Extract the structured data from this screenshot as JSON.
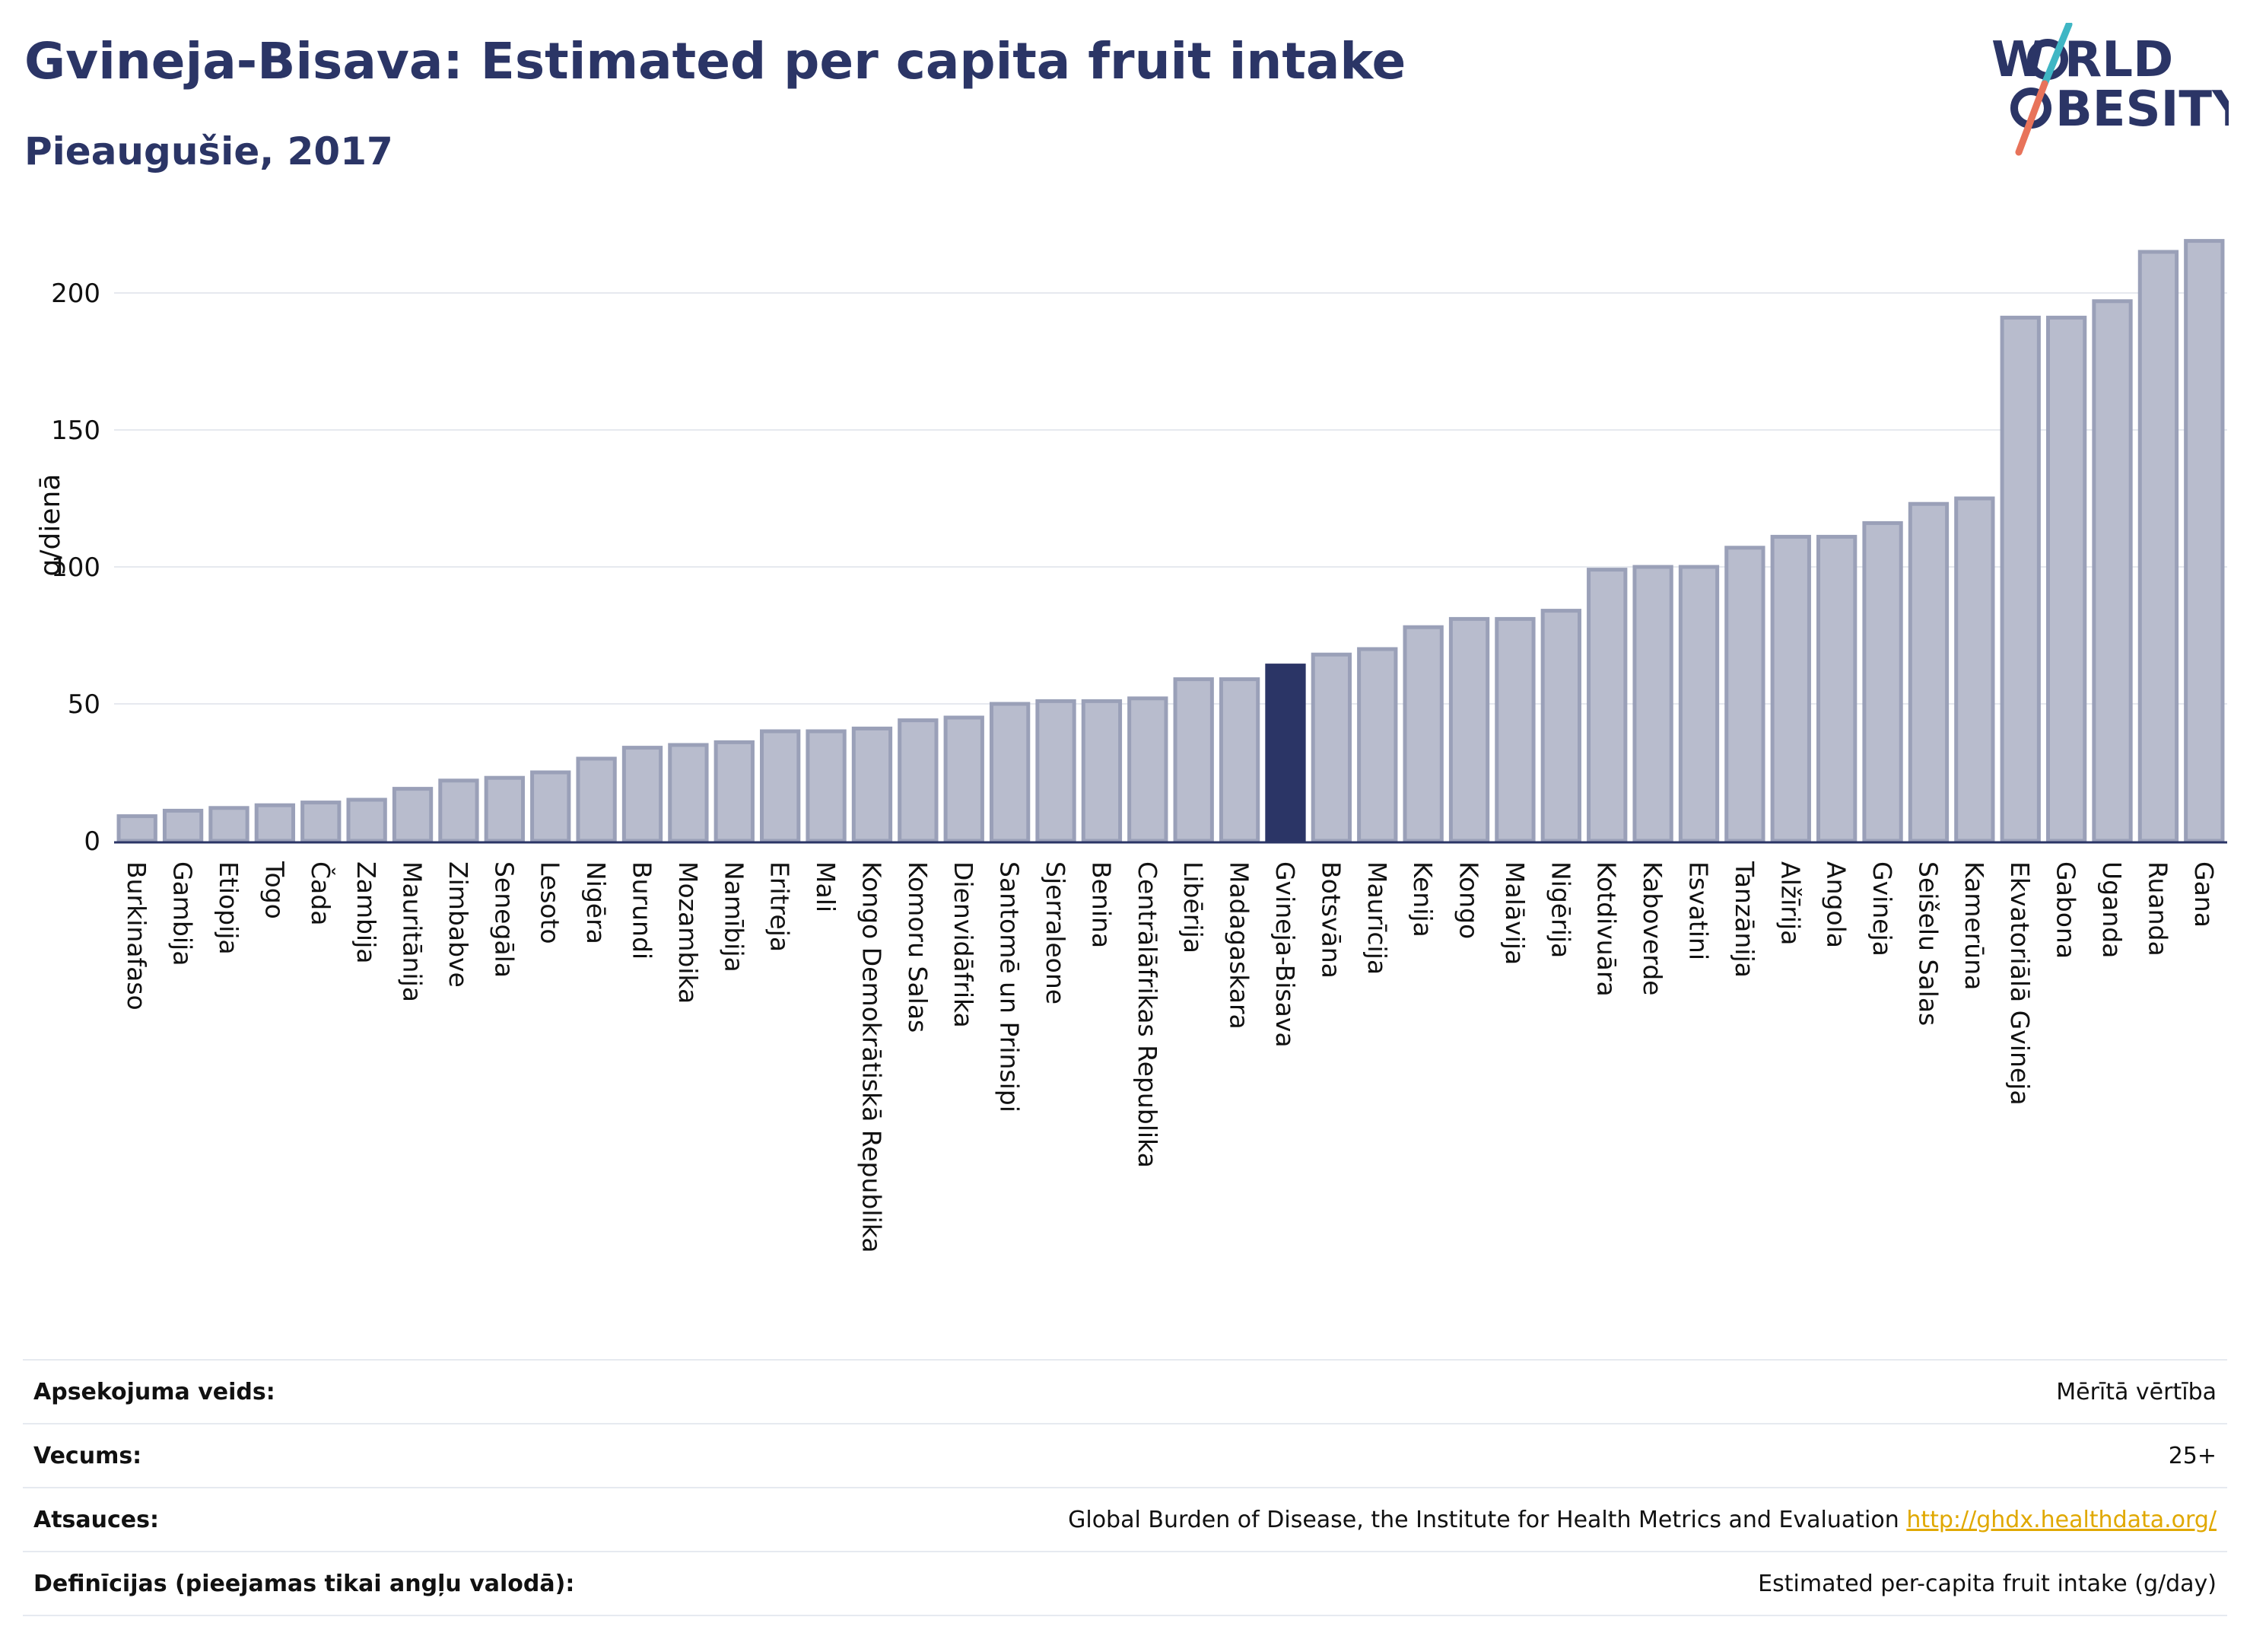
{
  "header": {
    "title": "Gvineja-Bisava: Estimated per capita fruit intake",
    "subtitle": "Pieaugušie, 2017"
  },
  "logo": {
    "line1": "W",
    "line1b": "RLD",
    "line2b": "BESITY",
    "slash_color_top": "#3fb6c4",
    "slash_color_bottom": "#e8735a"
  },
  "colors": {
    "bar": "#b8bccd",
    "bar_stroke": "#9aa0b8",
    "highlight": "#2b3566",
    "grid": "#e6e9ef"
  },
  "chart_data": {
    "type": "bar",
    "ylabel": "g/dienā",
    "ylim": [
      0,
      230
    ],
    "yticks": [
      0,
      50,
      100,
      150,
      200
    ],
    "grid": true,
    "highlight": "Gvineja-Bisava",
    "categories": [
      "Burkinafaso",
      "Gambija",
      "Etiopija",
      "Togo",
      "Čada",
      "Zambija",
      "Mauritānija",
      "Zimbabve",
      "Senegāla",
      "Lesoto",
      "Nigēra",
      "Burundi",
      "Mozambika",
      "Namībija",
      "Eritreja",
      "Mali",
      "Kongo Demokrātiskā Republika",
      "Komoru Salas",
      "Dienvidāfrika",
      "Santomē un Prinsipi",
      "Sjerraleone",
      "Benina",
      "Centrālāfrikas Republika",
      "Libērija",
      "Madagaskara",
      "Gvineja-Bisava",
      "Botsvāna",
      "Maurīcija",
      "Kenija",
      "Kongo",
      "Malāvija",
      "Nigērija",
      "Kotdivuāra",
      "Kaboverde",
      "Esvatini",
      "Tanzānija",
      "Alžīrija",
      "Angola",
      "Gvineja",
      "Seišelu Salas",
      "Kamerūna",
      "Ekvatoriālā Gvineja",
      "Gabona",
      "Uganda",
      "Ruanda",
      "Gana"
    ],
    "values": [
      9,
      11,
      12,
      13,
      14,
      15,
      19,
      22,
      23,
      25,
      30,
      34,
      35,
      36,
      40,
      40,
      41,
      44,
      45,
      50,
      51,
      51,
      52,
      59,
      59,
      64,
      68,
      70,
      78,
      81,
      81,
      84,
      99,
      100,
      100,
      107,
      111,
      111,
      116,
      123,
      125,
      191,
      191,
      197,
      215,
      219
    ]
  },
  "info": [
    {
      "label": "Apsekojuma veids:",
      "value": "Mērītā vērtība"
    },
    {
      "label": "Vecums:",
      "value": "25+"
    },
    {
      "label": "Atsauces:",
      "value": "Global Burden of Disease, the Institute for Health Metrics and Evaluation",
      "link": "http://ghdx.healthdata.org/"
    },
    {
      "label": "Definīcijas (pieejamas tikai angļu valodā):",
      "value": "Estimated per-capita fruit intake (g/day)"
    }
  ]
}
